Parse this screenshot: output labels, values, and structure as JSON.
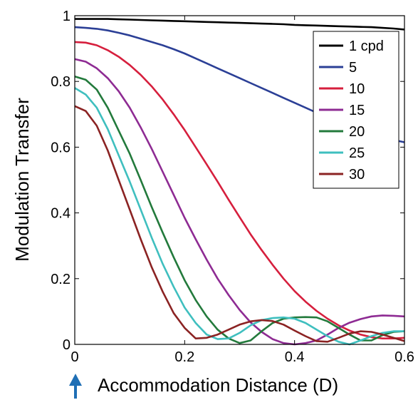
{
  "chart_data": {
    "type": "line",
    "xlabel": "Accommodation Distance (D)",
    "ylabel": "Modulation Transfer",
    "xlim": [
      0,
      0.6
    ],
    "ylim": [
      0,
      1
    ],
    "x_ticks": [
      "0",
      "0.2",
      "0.4",
      "0.6"
    ],
    "y_ticks": [
      "0",
      "0.2",
      "0.4",
      "0.6",
      "0.8",
      "1"
    ],
    "grid": false,
    "legend_position": "top-right",
    "marker": {
      "position_value": 0,
      "description": "arrow-up-icon"
    },
    "x": [
      0,
      0.02,
      0.04,
      0.06,
      0.08,
      0.1,
      0.12,
      0.14,
      0.16,
      0.18,
      0.2,
      0.22,
      0.24,
      0.26,
      0.28,
      0.3,
      0.32,
      0.34,
      0.36,
      0.38,
      0.4,
      0.42,
      0.44,
      0.46,
      0.48,
      0.5,
      0.52,
      0.54,
      0.56,
      0.58,
      0.6
    ],
    "series": [
      {
        "name": "1 cpd",
        "color": "#000000",
        "values": [
          0.99,
          0.99,
          0.99,
          0.99,
          0.989,
          0.988,
          0.987,
          0.986,
          0.985,
          0.984,
          0.983,
          0.982,
          0.981,
          0.98,
          0.979,
          0.978,
          0.977,
          0.976,
          0.975,
          0.974,
          0.972,
          0.971,
          0.97,
          0.969,
          0.968,
          0.967,
          0.966,
          0.965,
          0.963,
          0.961,
          0.958
        ]
      },
      {
        "name": "5",
        "color": "#2b3f96",
        "values": [
          0.965,
          0.963,
          0.96,
          0.955,
          0.948,
          0.94,
          0.93,
          0.92,
          0.91,
          0.898,
          0.885,
          0.87,
          0.855,
          0.84,
          0.825,
          0.81,
          0.795,
          0.78,
          0.765,
          0.75,
          0.735,
          0.72,
          0.705,
          0.69,
          0.675,
          0.66,
          0.645,
          0.635,
          0.628,
          0.622,
          0.615
        ]
      },
      {
        "name": "10",
        "color": "#d61f3d",
        "values": [
          0.92,
          0.918,
          0.91,
          0.895,
          0.875,
          0.85,
          0.82,
          0.785,
          0.745,
          0.7,
          0.652,
          0.6,
          0.548,
          0.495,
          0.44,
          0.387,
          0.335,
          0.287,
          0.242,
          0.2,
          0.162,
          0.13,
          0.102,
          0.078,
          0.058,
          0.042,
          0.03,
          0.022,
          0.018,
          0.018,
          0.02
        ]
      },
      {
        "name": "15",
        "color": "#8e2b93",
        "values": [
          0.868,
          0.86,
          0.84,
          0.81,
          0.77,
          0.72,
          0.66,
          0.595,
          0.525,
          0.455,
          0.385,
          0.32,
          0.258,
          0.2,
          0.15,
          0.105,
          0.067,
          0.038,
          0.016,
          0.004,
          0.0,
          0.004,
          0.012,
          0.03,
          0.05,
          0.066,
          0.077,
          0.085,
          0.088,
          0.087,
          0.085
        ]
      },
      {
        "name": "20",
        "color": "#237a3c",
        "values": [
          0.815,
          0.805,
          0.775,
          0.72,
          0.65,
          0.58,
          0.5,
          0.418,
          0.34,
          0.265,
          0.195,
          0.135,
          0.085,
          0.045,
          0.018,
          0.004,
          0.012,
          0.04,
          0.065,
          0.078,
          0.082,
          0.083,
          0.082,
          0.07,
          0.05,
          0.03,
          0.012,
          0.012,
          0.028,
          0.038,
          0.04
        ]
      },
      {
        "name": "25",
        "color": "#3fbfbf",
        "values": [
          0.78,
          0.76,
          0.72,
          0.655,
          0.575,
          0.495,
          0.41,
          0.325,
          0.245,
          0.175,
          0.112,
          0.065,
          0.03,
          0.016,
          0.018,
          0.035,
          0.058,
          0.074,
          0.08,
          0.082,
          0.078,
          0.065,
          0.045,
          0.025,
          0.008,
          0.0,
          0.012,
          0.025,
          0.035,
          0.04,
          0.04
        ]
      },
      {
        "name": "30",
        "color": "#8b2323",
        "values": [
          0.725,
          0.71,
          0.665,
          0.59,
          0.5,
          0.41,
          0.32,
          0.235,
          0.16,
          0.095,
          0.05,
          0.018,
          0.02,
          0.03,
          0.045,
          0.06,
          0.07,
          0.074,
          0.071,
          0.06,
          0.042,
          0.025,
          0.01,
          0.008,
          0.02,
          0.033,
          0.04,
          0.038,
          0.03,
          0.02,
          0.01
        ]
      }
    ]
  }
}
